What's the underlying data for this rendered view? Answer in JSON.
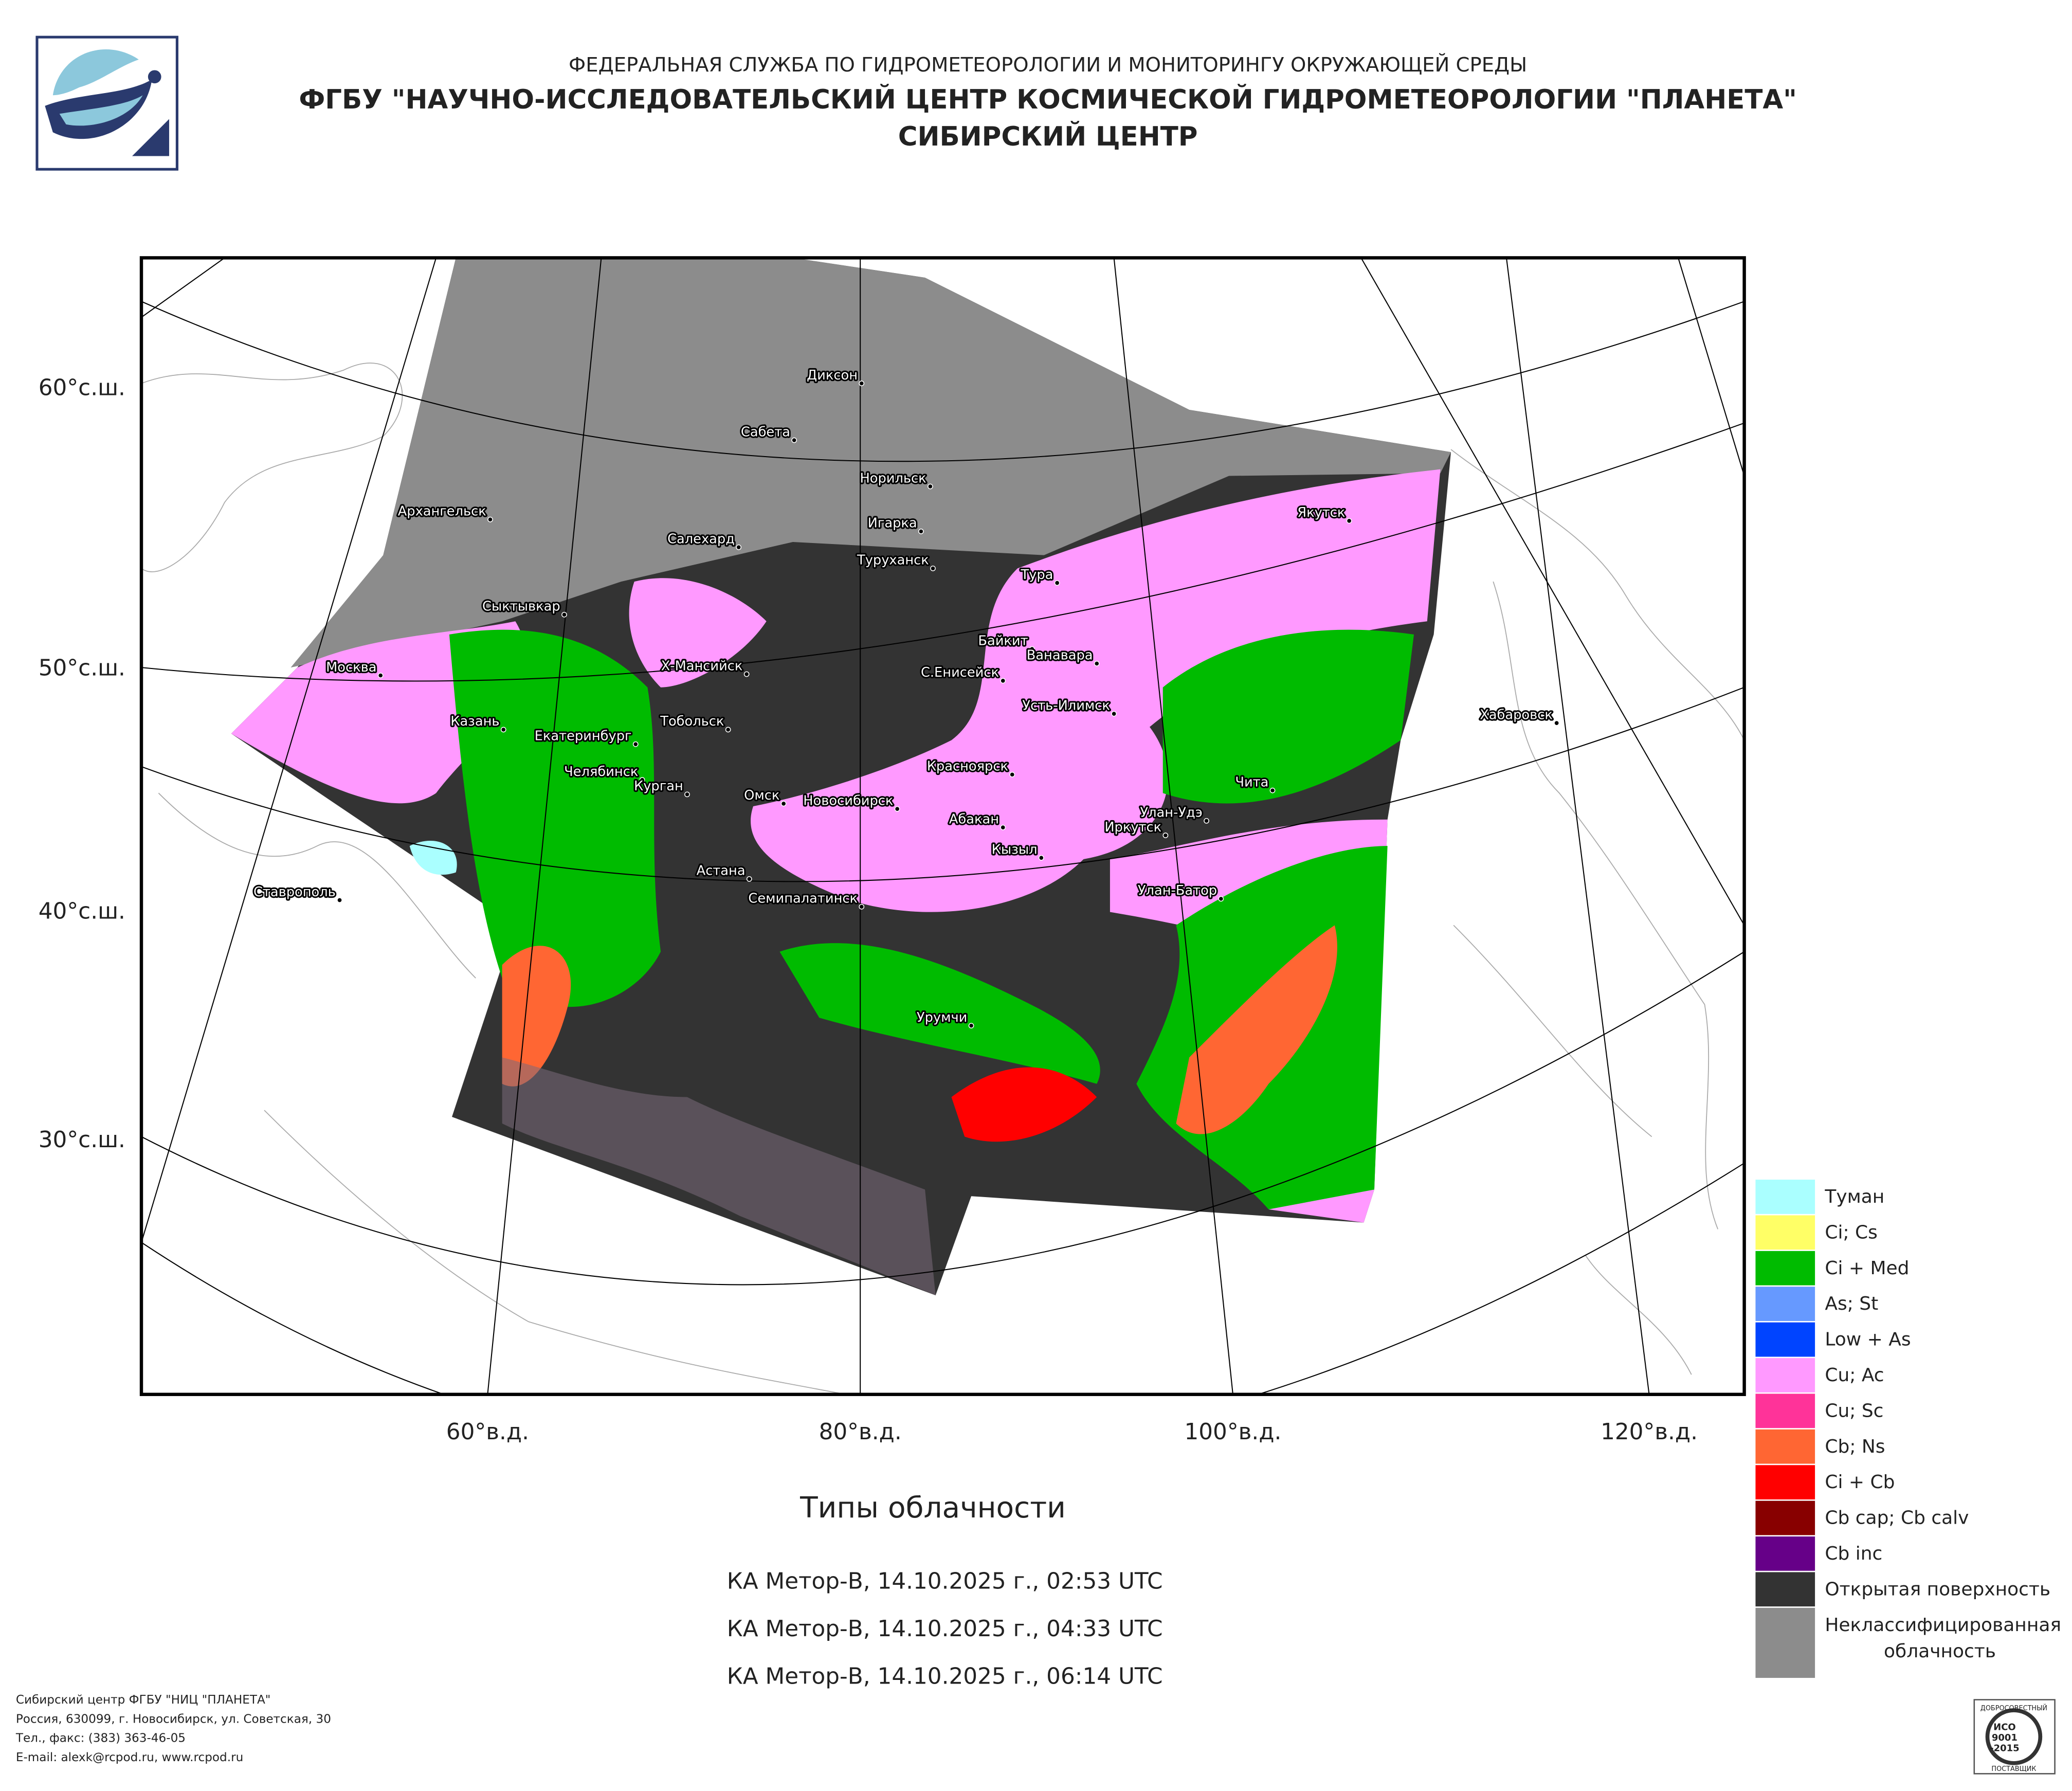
{
  "header": {
    "agency": "ФЕДЕРАЛЬНАЯ СЛУЖБА ПО ГИДРОМЕТЕОРОЛОГИИ И МОНИТОРИНГУ ОКРУЖАЮЩЕЙ СРЕДЫ",
    "institute": "ФГБУ \"НАУЧНО-ИССЛЕДОВАТЕЛЬСКИЙ ЦЕНТР КОСМИЧЕСКОЙ ГИДРОМЕТЕОРОЛОГИИ \"ПЛАНЕТА\"",
    "center": "СИБИРСКИЙ ЦЕНТР"
  },
  "map": {
    "lat_labels": [
      "60°с.ш.",
      "50°с.ш.",
      "40°с.ш.",
      "30°с.ш."
    ],
    "lon_labels": [
      "60°в.д.",
      "80°в.д.",
      "100°в.д.",
      "120°в.д."
    ],
    "cities": [
      "Диксон",
      "Сабета",
      "Норильск",
      "Архангельск",
      "Игарка",
      "Салехард",
      "Якутск",
      "Туруханск",
      "Тура",
      "Сыктывкар",
      "Байкит",
      "Ванавара",
      "Москва",
      "Х-Мансийск",
      "С.Енисейск",
      "Усть-Илимск",
      "Хабаровск",
      "Казань",
      "Тобольск",
      "Екатеринбург",
      "Челябинск",
      "Чита",
      "Курган",
      "Красноярск",
      "Омск",
      "Новосибирск",
      "Улан-Удэ",
      "Абакан",
      "Иркутск",
      "Кызыл",
      "Астана",
      "Ставрополь",
      "Улан-Батор",
      "Семипалатинск",
      "Урумчи"
    ]
  },
  "legend": [
    {
      "label": "Туман",
      "color": "#aaffff"
    },
    {
      "label": "Ci; Cs",
      "color": "#ffff66"
    },
    {
      "label": "Ci + Med",
      "color": "#00bb00"
    },
    {
      "label": "As; St",
      "color": "#6699ff"
    },
    {
      "label": "Low + As",
      "color": "#0044ff"
    },
    {
      "label": "Cu; Ac",
      "color": "#ff99ff"
    },
    {
      "label": "Cu; Sc",
      "color": "#ff3399"
    },
    {
      "label": "Cb; Ns",
      "color": "#ff6633"
    },
    {
      "label": "Ci + Cb",
      "color": "#ff0000"
    },
    {
      "label": "Cb cap; Cb calv",
      "color": "#880000"
    },
    {
      "label": "Cb inc",
      "color": "#660088"
    },
    {
      "label": "Открытая поверхность",
      "color": "#333333"
    },
    {
      "label": [
        "Неклассифицированная",
        "облачность"
      ],
      "color": "#8c8c8c"
    }
  ],
  "caption": {
    "title": "Типы облачности",
    "passes": [
      "КА Метор-B, 14.10.2025 г., 02:53 UTC",
      "КА Метор-B, 14.10.2025 г., 04:33 UTC",
      "КА Метор-B, 14.10.2025 г., 06:14 UTC"
    ]
  },
  "footer": [
    "Сибирский центр ФГБУ \"НИЦ \"ПЛАНЕТА\"",
    "Россия, 630099, г. Новосибирск, ул. Советская, 30",
    "Тел., факс: (383) 363-46-05",
    "E-mail: alexk@rcpod.ru, www.rcpod.ru"
  ],
  "badge": {
    "top": "ДОБРОСОВЕСТНЫЙ",
    "standard": [
      "ИСО",
      "9001",
      "-2015"
    ],
    "bottom": "ПОСТАВЩИК"
  }
}
